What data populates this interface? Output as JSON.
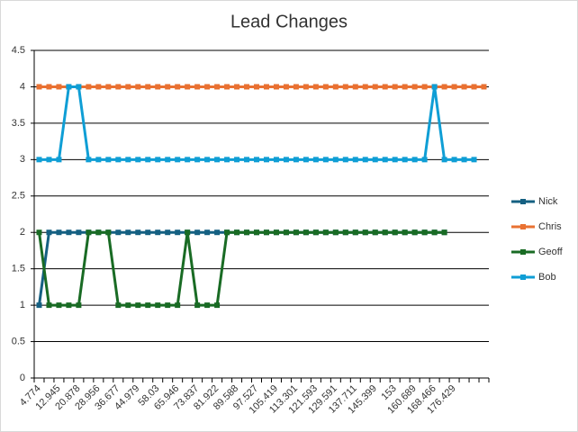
{
  "chart_data": {
    "type": "line",
    "title": "Lead Changes",
    "categories": [
      "4.774",
      null,
      "12.945",
      null,
      "20.878",
      null,
      "28.956",
      null,
      "36.677",
      null,
      "44.979",
      null,
      "58.03",
      null,
      "65.946",
      null,
      "73.837",
      null,
      "81.922",
      null,
      "89.588",
      null,
      "97.527",
      null,
      "105.419",
      null,
      "113.301",
      null,
      "121.593",
      null,
      "129.591",
      null,
      "137.711",
      null,
      "145.399",
      null,
      "153",
      null,
      "160.689",
      null,
      "168.466",
      null,
      "176.429",
      null,
      null,
      null
    ],
    "series": [
      {
        "name": "Nick",
        "color": "#156082",
        "values": [
          1,
          2,
          2,
          2,
          2,
          2,
          2,
          2,
          2,
          2,
          2,
          2,
          2,
          2,
          2,
          2,
          2,
          2,
          2,
          2,
          2,
          2,
          2,
          2,
          2,
          2,
          2,
          2,
          2,
          2,
          2,
          2,
          2,
          2,
          2,
          2,
          2,
          2,
          2,
          2,
          2,
          2,
          null,
          null,
          null,
          null
        ]
      },
      {
        "name": "Chris",
        "color": "#e97132",
        "values": [
          4,
          4,
          4,
          4,
          4,
          4,
          4,
          4,
          4,
          4,
          4,
          4,
          4,
          4,
          4,
          4,
          4,
          4,
          4,
          4,
          4,
          4,
          4,
          4,
          4,
          4,
          4,
          4,
          4,
          4,
          4,
          4,
          4,
          4,
          4,
          4,
          4,
          4,
          4,
          4,
          4,
          4,
          4,
          4,
          4,
          4
        ]
      },
      {
        "name": "Geoff",
        "color": "#196b24",
        "values": [
          2,
          1,
          1,
          1,
          1,
          2,
          2,
          2,
          1,
          1,
          1,
          1,
          1,
          1,
          1,
          2,
          1,
          1,
          1,
          2,
          2,
          2,
          2,
          2,
          2,
          2,
          2,
          2,
          2,
          2,
          2,
          2,
          2,
          2,
          2,
          2,
          2,
          2,
          2,
          2,
          2,
          2,
          null,
          null,
          null,
          null
        ]
      },
      {
        "name": "Bob",
        "color": "#0f9ed5",
        "values": [
          3,
          3,
          3,
          4,
          4,
          3,
          3,
          3,
          3,
          3,
          3,
          3,
          3,
          3,
          3,
          3,
          3,
          3,
          3,
          3,
          3,
          3,
          3,
          3,
          3,
          3,
          3,
          3,
          3,
          3,
          3,
          3,
          3,
          3,
          3,
          3,
          3,
          3,
          3,
          3,
          4,
          3,
          3,
          3,
          3,
          null
        ]
      }
    ],
    "ylim": [
      0,
      4.5
    ],
    "yticks": [
      0,
      0.5,
      1,
      1.5,
      2,
      2.5,
      3,
      3.5,
      4,
      4.5
    ],
    "grid": true,
    "legend": "right"
  }
}
